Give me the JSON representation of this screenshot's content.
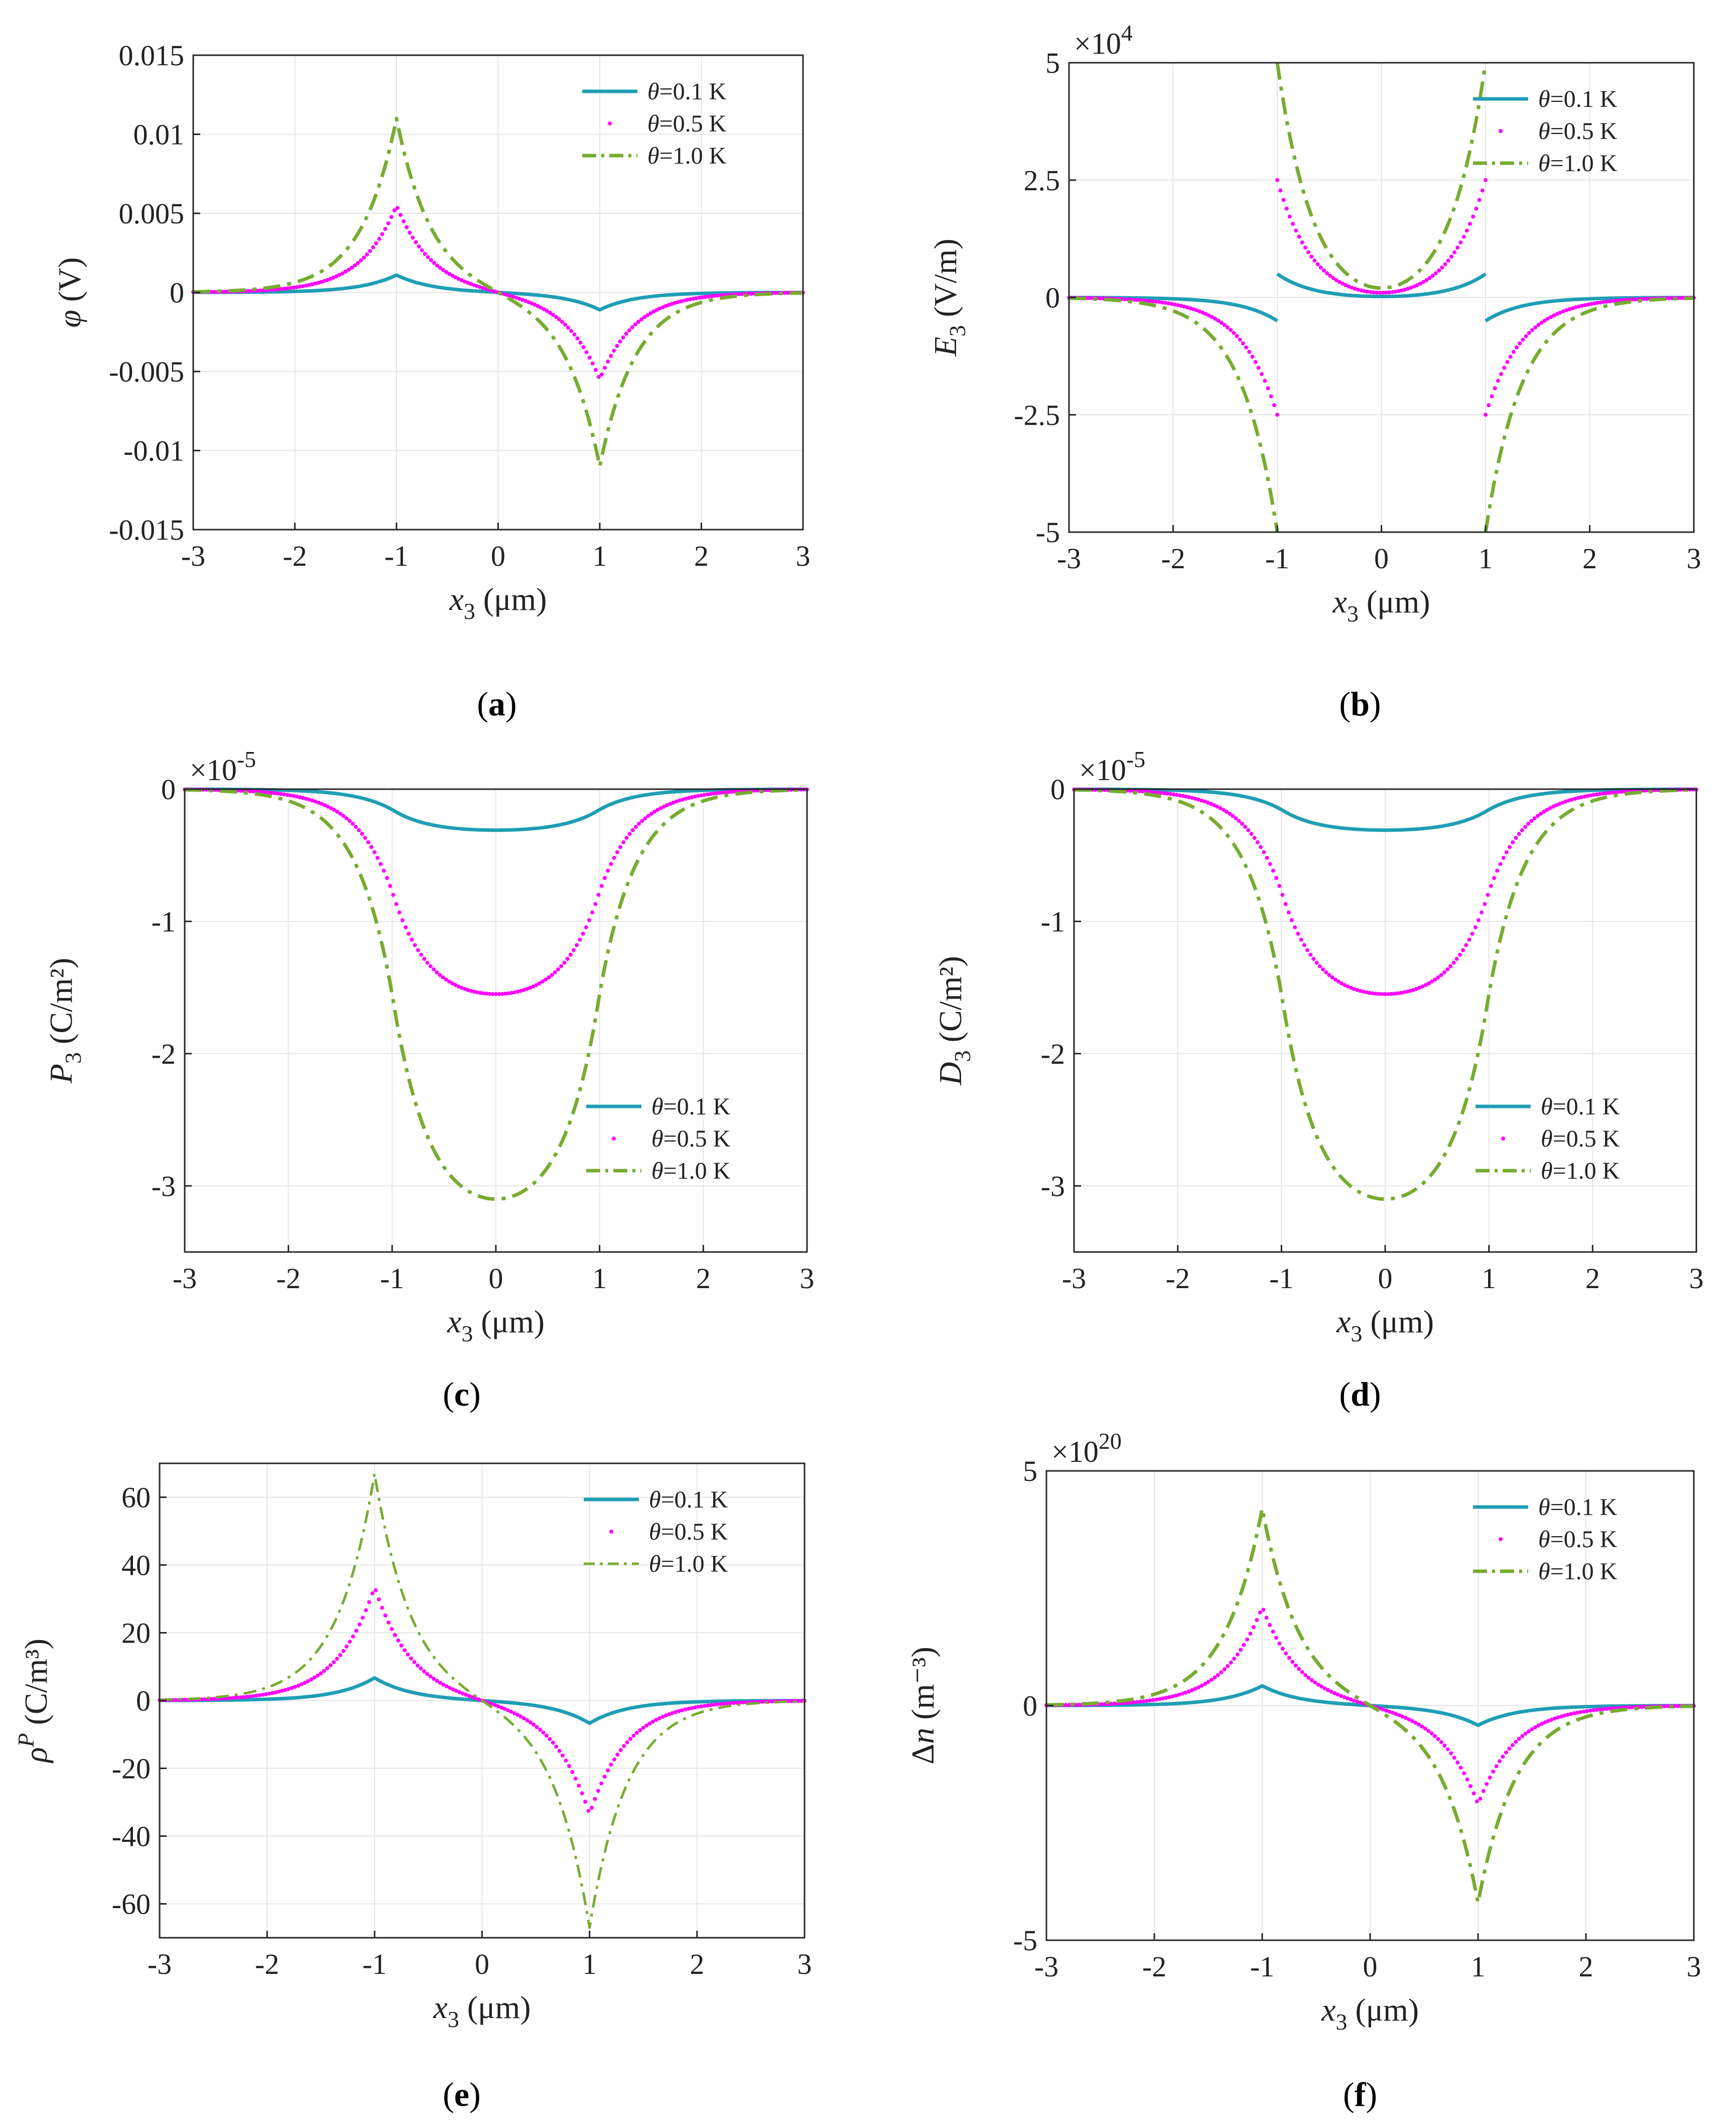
{
  "figure": {
    "panels_count": 6
  },
  "chart_data": [
    {
      "id": "a",
      "type": "line",
      "caption_letter": "a",
      "xlabel_var": "x",
      "xlabel_sub": "3",
      "xlabel_unit": " (μm)",
      "ylabel_var": "φ",
      "ylabel_sub": "",
      "ylabel_unit": " (V)",
      "exponent_base": "",
      "exponent_power": "",
      "xlim": [
        -3,
        3
      ],
      "ylim": [
        -0.015,
        0.015
      ],
      "xticks": [
        -3,
        -2,
        -1,
        0,
        1,
        2,
        3
      ],
      "xtick_labels": [
        "-3",
        "-2",
        "-1",
        "0",
        "1",
        "2",
        "3"
      ],
      "yticks": [
        -0.015,
        -0.01,
        -0.005,
        0,
        0.005,
        0.01,
        0.015
      ],
      "ytick_labels": [
        "-0.015",
        "-0.01",
        "-0.005",
        "0",
        "0.005",
        "0.01",
        "0.015"
      ],
      "legend_position": "top-right",
      "curve_form": "peak",
      "grid": true,
      "series": [
        {
          "name": "θ=0.1 K",
          "label_var": "θ",
          "label_rest": "=0.1 K",
          "style": "solid",
          "color": "#1f9eb5",
          "amplitude": 0.0011,
          "decay": 0.35,
          "step": 0.05
        },
        {
          "name": "θ=0.5 K",
          "label_var": "θ",
          "label_rest": "=0.5 K",
          "style": "dotted",
          "color": "#ff00ff",
          "amplitude": 0.0055,
          "decay": 0.35,
          "step": 0.03
        },
        {
          "name": "θ=1.0 K",
          "label_var": "θ",
          "label_rest": "=1.0 K",
          "style": "dashdot",
          "color": "#77ac30",
          "amplitude": 0.011,
          "decay": 0.35,
          "step": 0.02
        }
      ]
    },
    {
      "id": "b",
      "type": "line",
      "caption_letter": "b",
      "xlabel_var": "x",
      "xlabel_sub": "3",
      "xlabel_unit": " (μm)",
      "ylabel_var": "E",
      "ylabel_sub": "3",
      "ylabel_unit": " (V/m)",
      "exponent_base": "×10",
      "exponent_power": "4",
      "xlim": [
        -3,
        3
      ],
      "ylim": [
        -5,
        5
      ],
      "xticks": [
        -3,
        -2,
        -1,
        0,
        1,
        2,
        3
      ],
      "xtick_labels": [
        "-3",
        "-2",
        "-1",
        "0",
        "1",
        "2",
        "3"
      ],
      "yticks": [
        -5,
        -2.5,
        0,
        2.5,
        5
      ],
      "ytick_labels": [
        "-5",
        "-2.5",
        "0",
        "2.5",
        "5"
      ],
      "legend_position": "top-right",
      "curve_form": "field",
      "grid": true,
      "series": [
        {
          "name": "θ=0.1 K",
          "label_var": "θ",
          "label_rest": "=0.1 K",
          "style": "solid",
          "color": "#1f9eb5",
          "outer_edge": 0.5,
          "inner_edge": 0.5,
          "center": 0.02,
          "decay": 0.35,
          "step": 0.05
        },
        {
          "name": "θ=0.5 K",
          "label_var": "θ",
          "label_rest": "=0.5 K",
          "style": "dotted",
          "color": "#ff00ff",
          "outer_edge": 2.5,
          "inner_edge": 2.5,
          "center": 0.1,
          "decay": 0.35,
          "step": 0.03
        },
        {
          "name": "θ=1.0 K",
          "label_var": "θ",
          "label_rest": "=1.0 K",
          "style": "dashdot",
          "color": "#77ac30",
          "outer_edge": 5.0,
          "inner_edge": 5.0,
          "center": 0.2,
          "decay": 0.35,
          "step": 0.02
        }
      ]
    },
    {
      "id": "c",
      "type": "line",
      "caption_letter": "c",
      "xlabel_var": "x",
      "xlabel_sub": "3",
      "xlabel_unit": " (μm)",
      "ylabel_var": "P",
      "ylabel_sub": "3",
      "ylabel_unit": " (C/m²)",
      "exponent_base": "×10",
      "exponent_power": "-5",
      "xlim": [
        -3,
        3
      ],
      "ylim": [
        -3.5,
        0
      ],
      "xticks": [
        -3,
        -2,
        -1,
        0,
        1,
        2,
        3
      ],
      "xtick_labels": [
        "-3",
        "-2",
        "-1",
        "0",
        "1",
        "2",
        "3"
      ],
      "yticks": [
        -3,
        -2,
        -1,
        0
      ],
      "ytick_labels": [
        "-3",
        "-2",
        "-1",
        "0"
      ],
      "legend_position": "lower-right",
      "curve_form": "well",
      "grid": true,
      "series": [
        {
          "name": "θ=0.1 K",
          "label_var": "θ",
          "label_rest": "=0.1 K",
          "style": "solid",
          "color": "#1f9eb5",
          "depth": 0.31,
          "edge_value": 0.155,
          "decay": 0.35,
          "step": 0.05
        },
        {
          "name": "θ=0.5 K",
          "label_var": "θ",
          "label_rest": "=0.5 K",
          "style": "dotted",
          "color": "#ff00ff",
          "depth": 1.55,
          "edge_value": 0.775,
          "decay": 0.35,
          "step": 0.03
        },
        {
          "name": "θ=1.0 K",
          "label_var": "θ",
          "label_rest": "=1.0 K",
          "style": "dashdot",
          "color": "#77ac30",
          "depth": 3.1,
          "edge_value": 1.55,
          "decay": 0.35,
          "step": 0.02
        }
      ]
    },
    {
      "id": "d",
      "type": "line",
      "caption_letter": "d",
      "xlabel_var": "x",
      "xlabel_sub": "3",
      "xlabel_unit": " (μm)",
      "ylabel_var": "D",
      "ylabel_sub": "3",
      "ylabel_unit": " (C/m²)",
      "exponent_base": "×10",
      "exponent_power": "-5",
      "xlim": [
        -3,
        3
      ],
      "ylim": [
        -3.5,
        0
      ],
      "xticks": [
        -3,
        -2,
        -1,
        0,
        1,
        2,
        3
      ],
      "xtick_labels": [
        "-3",
        "-2",
        "-1",
        "0",
        "1",
        "2",
        "3"
      ],
      "yticks": [
        -3,
        -2,
        -1,
        0
      ],
      "ytick_labels": [
        "-3",
        "-2",
        "-1",
        "0"
      ],
      "legend_position": "lower-right",
      "curve_form": "well",
      "grid": true,
      "series": [
        {
          "name": "θ=0.1 K",
          "label_var": "θ",
          "label_rest": "=0.1 K",
          "style": "solid",
          "color": "#1f9eb5",
          "depth": 0.31,
          "edge_value": 0.155,
          "decay": 0.35,
          "step": 0.05
        },
        {
          "name": "θ=0.5 K",
          "label_var": "θ",
          "label_rest": "=0.5 K",
          "style": "dotted",
          "color": "#ff00ff",
          "depth": 1.55,
          "edge_value": 0.775,
          "decay": 0.35,
          "step": 0.03
        },
        {
          "name": "θ=1.0 K",
          "label_var": "θ",
          "label_rest": "=1.0 K",
          "style": "dashdot",
          "color": "#77ac30",
          "depth": 3.1,
          "edge_value": 1.55,
          "decay": 0.35,
          "step": 0.02
        }
      ]
    },
    {
      "id": "e",
      "type": "line",
      "caption_letter": "e",
      "xlabel_var": "x",
      "xlabel_sub": "3",
      "xlabel_unit": " (μm)",
      "ylabel_var": "ρ",
      "ylabel_sub": "",
      "ylabel_sup": "P",
      "ylabel_unit": " (C/m³)",
      "exponent_base": "",
      "exponent_power": "",
      "xlim": [
        -3,
        3
      ],
      "ylim": [
        -70,
        70
      ],
      "xticks": [
        -3,
        -2,
        -1,
        0,
        1,
        2,
        3
      ],
      "xtick_labels": [
        "-3",
        "-2",
        "-1",
        "0",
        "1",
        "2",
        "3"
      ],
      "yticks": [
        -60,
        -40,
        -20,
        0,
        20,
        40,
        60
      ],
      "ytick_labels": [
        "-60",
        "-40",
        "-20",
        "0",
        "20",
        "40",
        "60"
      ],
      "legend_position": "top-right",
      "curve_form": "peak",
      "grid": true,
      "series": [
        {
          "name": "θ=0.1 K",
          "label_var": "θ",
          "label_rest": "=0.1 K",
          "style": "solid",
          "color": "#1f9eb5",
          "amplitude": 6.7,
          "decay": 0.35,
          "step": 0.05
        },
        {
          "name": "θ=0.5 K",
          "label_var": "θ",
          "label_rest": "=0.5 K",
          "style": "dotted",
          "color": "#ff00ff",
          "amplitude": 33.5,
          "decay": 0.35,
          "step": 0.03
        },
        {
          "name": "θ=1.0 K",
          "label_var": "θ",
          "label_rest": "=1.0 K",
          "style": "dashdot-thin",
          "color": "#77ac30",
          "amplitude": 67,
          "decay": 0.35,
          "step": 0.02
        }
      ]
    },
    {
      "id": "f",
      "type": "line",
      "caption_letter": "f",
      "xlabel_var": "x",
      "xlabel_sub": "3",
      "xlabel_unit": " (μm)",
      "ylabel_var": "n",
      "ylabel_prefix": "Δ",
      "ylabel_sub": "",
      "ylabel_unit": " (m⁻³)",
      "exponent_base": "×10",
      "exponent_power": "20",
      "xlim": [
        -3,
        3
      ],
      "ylim": [
        -5,
        5
      ],
      "xticks": [
        -3,
        -2,
        -1,
        0,
        1,
        2,
        3
      ],
      "xtick_labels": [
        "-3",
        "-2",
        "-1",
        "0",
        "1",
        "2",
        "3"
      ],
      "yticks": [
        -5,
        0,
        5
      ],
      "ytick_labels": [
        "-5",
        "0",
        "5"
      ],
      "legend_position": "top-right",
      "curve_form": "peak",
      "grid": true,
      "series": [
        {
          "name": "θ=0.1 K",
          "label_var": "θ",
          "label_rest": "=0.1 K",
          "style": "solid",
          "color": "#1f9eb5",
          "amplitude": 0.42,
          "decay": 0.35,
          "step": 0.05
        },
        {
          "name": "θ=0.5 K",
          "label_var": "θ",
          "label_rest": "=0.5 K",
          "style": "dotted",
          "color": "#ff00ff",
          "amplitude": 2.1,
          "decay": 0.35,
          "step": 0.03
        },
        {
          "name": "θ=1.0 K",
          "label_var": "θ",
          "label_rest": "=1.0 K",
          "style": "dashdot",
          "color": "#77ac30",
          "amplitude": 4.2,
          "decay": 0.35,
          "step": 0.02
        }
      ]
    }
  ]
}
